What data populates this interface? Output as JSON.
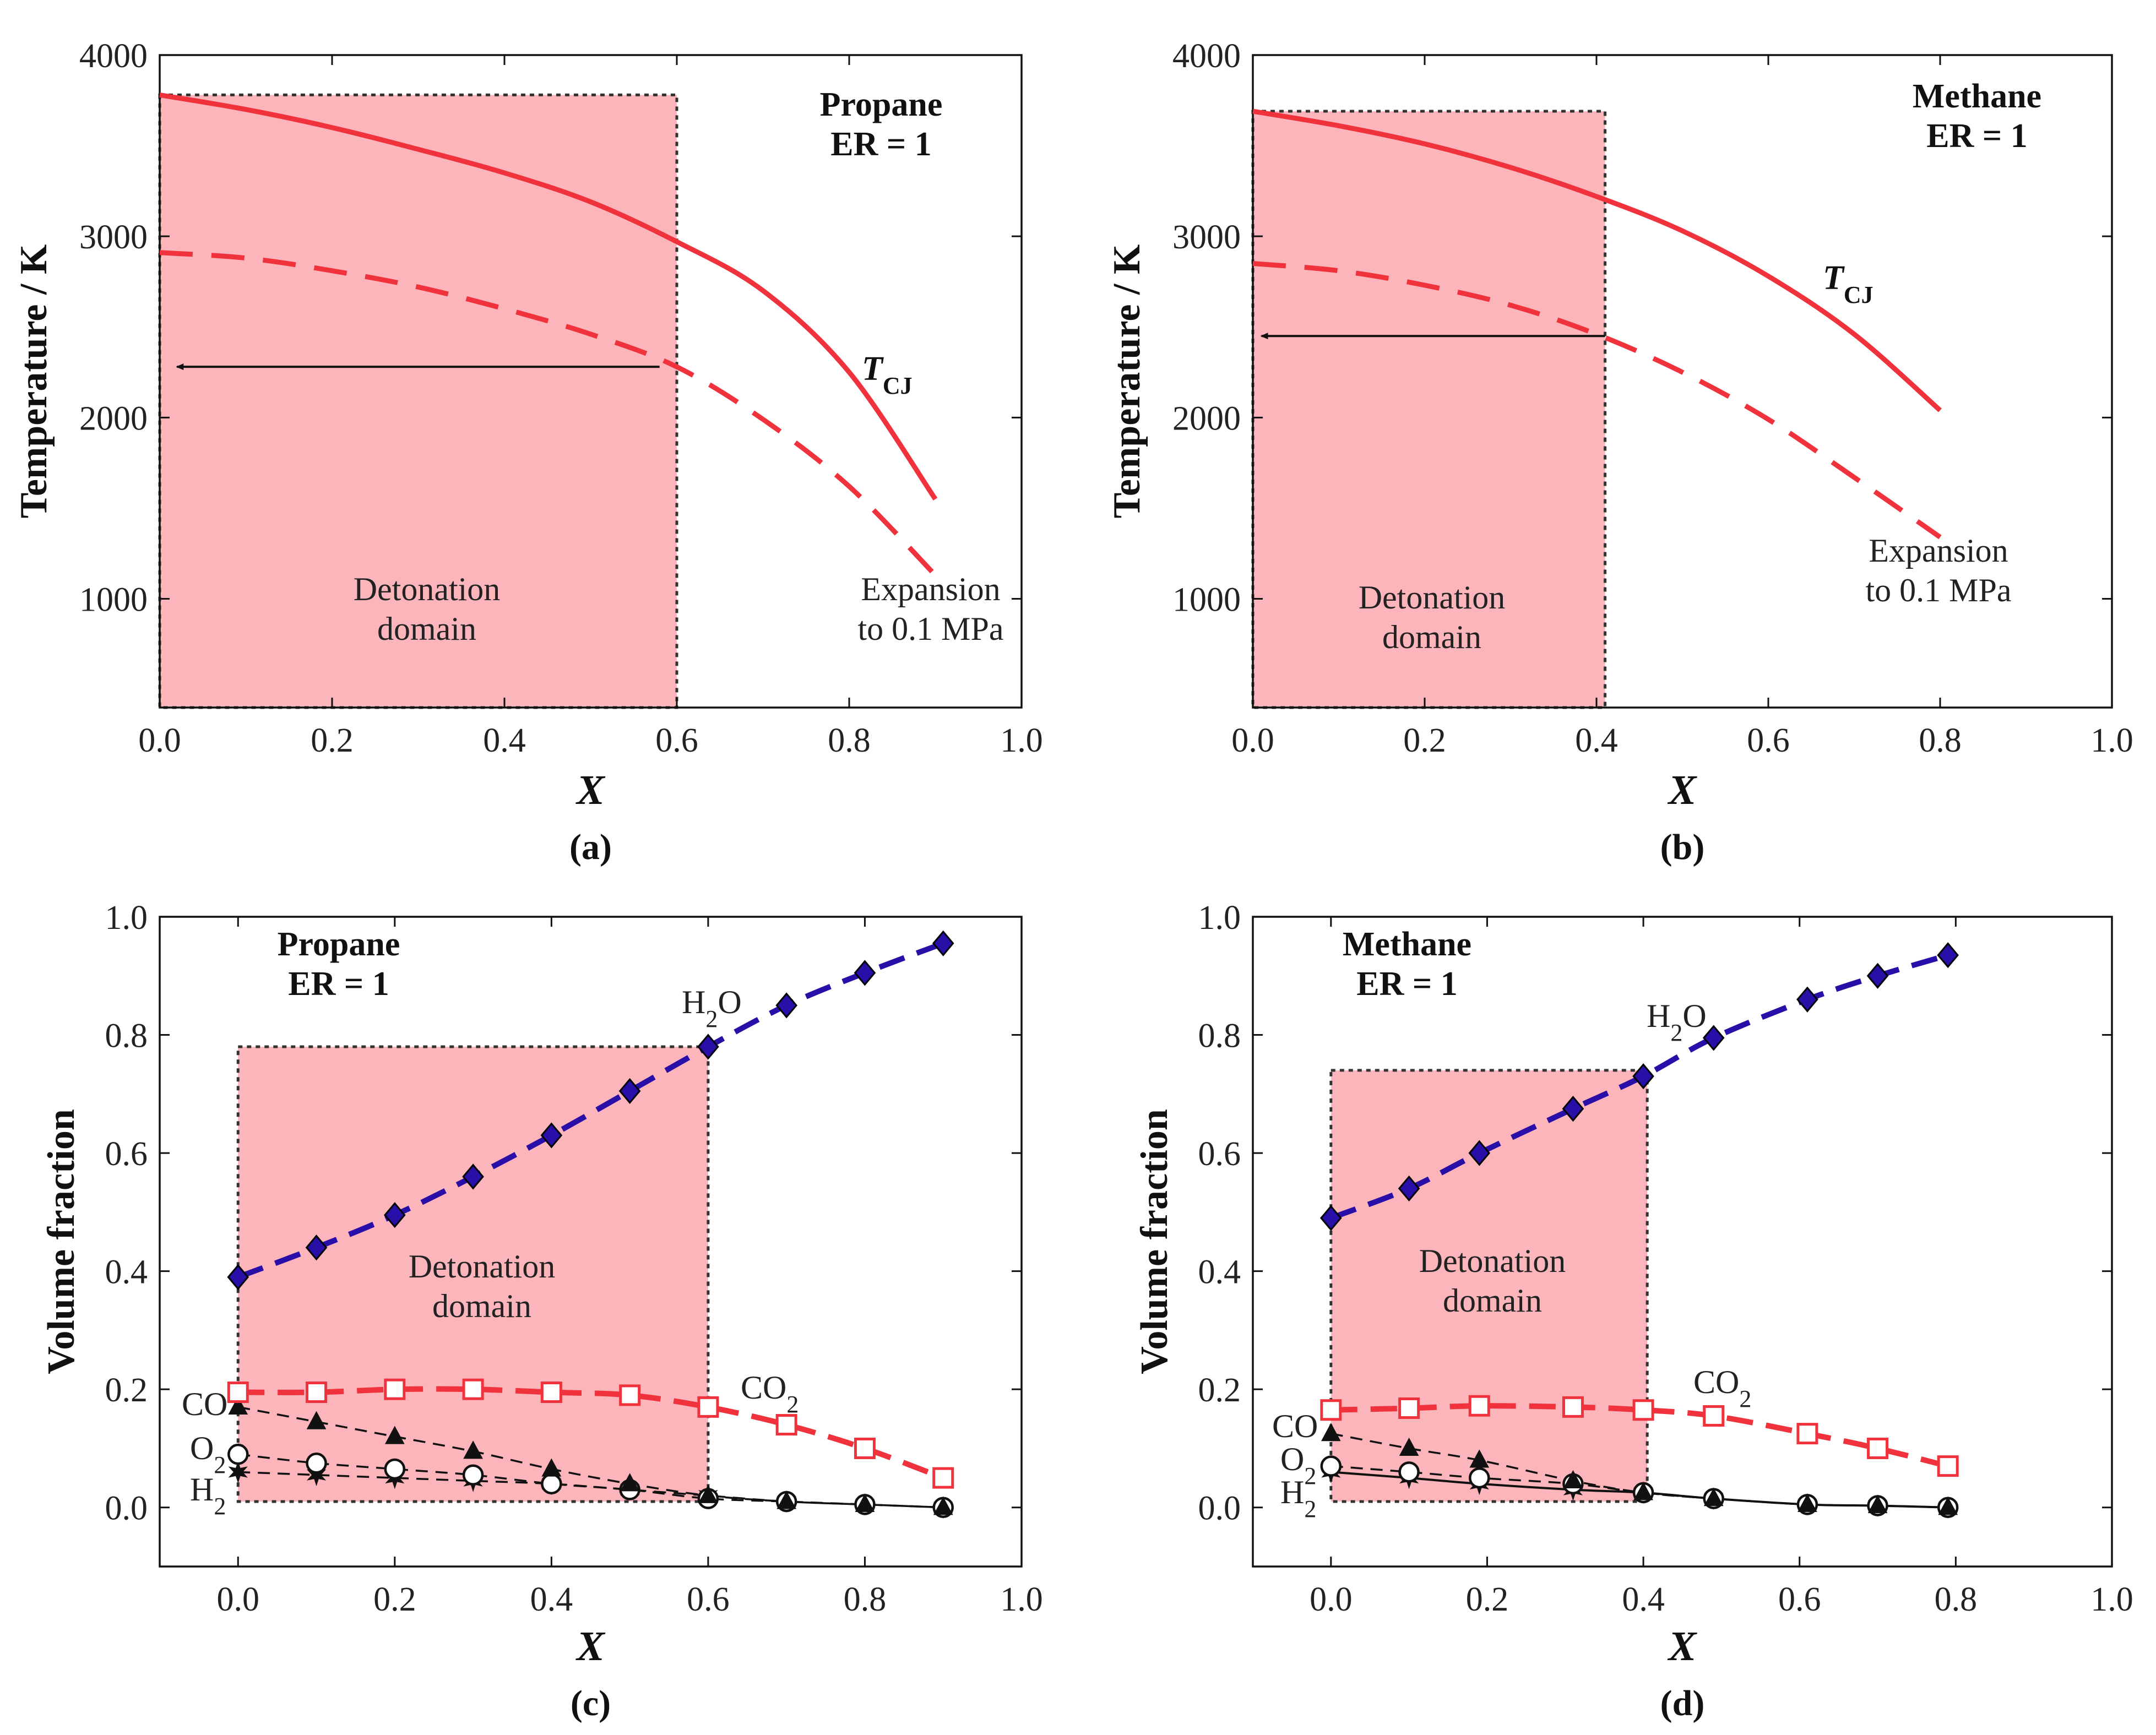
{
  "chart_data": [
    {
      "panel": "a",
      "type": "line",
      "panel_label": "(a)",
      "fuel_label": "Propane",
      "er_label": "ER = 1",
      "ylabel": "Temperature / K",
      "xlabel": "X",
      "xlim": [
        0.0,
        1.0
      ],
      "ylim": [
        400,
        4000
      ],
      "xticks": [
        0.0,
        0.2,
        0.4,
        0.6,
        0.8,
        1.0
      ],
      "xtick_labels": [
        "0.0",
        "0.2",
        "0.4",
        "0.6",
        "0.8",
        "1.0"
      ],
      "yticks": [
        1000,
        2000,
        3000,
        4000
      ],
      "ytick_labels": [
        "1000",
        "2000",
        "3000",
        "4000"
      ],
      "domain_label": [
        "Detonation",
        "domain"
      ],
      "domain_x": [
        0.0,
        0.6
      ],
      "domain_y": [
        400,
        3780
      ],
      "arrow": {
        "from_x": 0.58,
        "to_x": 0.02,
        "y": 2280
      },
      "series": [
        {
          "name": "TCJ",
          "label_main": "T",
          "label_sub": "CJ",
          "style": "solid",
          "color": "#f0323c",
          "x": [
            0.0,
            0.1,
            0.2,
            0.3,
            0.4,
            0.5,
            0.6,
            0.7,
            0.8,
            0.9
          ],
          "y": [
            3780,
            3700,
            3600,
            3480,
            3350,
            3190,
            2970,
            2700,
            2250,
            1550
          ]
        },
        {
          "name": "Expansion to 0.1 MPa",
          "label": [
            "Expansion",
            "to 0.1 MPa"
          ],
          "style": "dashed",
          "color": "#f0323c",
          "x": [
            0.0,
            0.1,
            0.2,
            0.3,
            0.4,
            0.5,
            0.6,
            0.7,
            0.8,
            0.9
          ],
          "y": [
            2910,
            2880,
            2810,
            2720,
            2600,
            2460,
            2280,
            1990,
            1620,
            1130
          ]
        }
      ]
    },
    {
      "panel": "b",
      "type": "line",
      "panel_label": "(b)",
      "fuel_label": "Methane",
      "er_label": "ER = 1",
      "ylabel": "Temperature / K",
      "xlabel": "X",
      "xlim": [
        0.0,
        1.0
      ],
      "ylim": [
        400,
        4000
      ],
      "xticks": [
        0.0,
        0.2,
        0.4,
        0.6,
        0.8,
        1.0
      ],
      "xtick_labels": [
        "0.0",
        "0.2",
        "0.4",
        "0.6",
        "0.8",
        "1.0"
      ],
      "yticks": [
        1000,
        2000,
        3000,
        4000
      ],
      "ytick_labels": [
        "1000",
        "2000",
        "3000",
        "4000"
      ],
      "domain_label": [
        "Detonation",
        "domain"
      ],
      "domain_x": [
        0.0,
        0.41
      ],
      "domain_y": [
        400,
        3690
      ],
      "arrow": {
        "from_x": 0.41,
        "to_x": 0.01,
        "y": 2450
      },
      "series": [
        {
          "name": "TCJ",
          "label_main": "T",
          "label_sub": "CJ",
          "style": "solid",
          "color": "#f0323c",
          "x": [
            0.0,
            0.1,
            0.2,
            0.3,
            0.4,
            0.5,
            0.6,
            0.7,
            0.8
          ],
          "y": [
            3690,
            3610,
            3510,
            3380,
            3220,
            3030,
            2780,
            2460,
            2040
          ]
        },
        {
          "name": "Expansion to 0.1 MPa",
          "label": [
            "Expansion",
            "to 0.1 MPa"
          ],
          "style": "dashed",
          "color": "#f0323c",
          "x": [
            0.0,
            0.1,
            0.2,
            0.3,
            0.4,
            0.5,
            0.6,
            0.7,
            0.8
          ],
          "y": [
            2850,
            2810,
            2730,
            2620,
            2460,
            2250,
            1990,
            1670,
            1340
          ]
        }
      ]
    },
    {
      "panel": "c",
      "type": "line",
      "panel_label": "(c)",
      "fuel_label": "Propane",
      "er_label": "ER = 1",
      "ylabel": "Volume fraction",
      "xlabel": "X",
      "xlim": [
        -0.1,
        1.0
      ],
      "ylim": [
        -0.1,
        1.0
      ],
      "xticks": [
        0.0,
        0.2,
        0.4,
        0.6,
        0.8,
        1.0
      ],
      "xtick_labels": [
        "0.0",
        "0.2",
        "0.4",
        "0.6",
        "0.8",
        "1.0"
      ],
      "yticks": [
        0.0,
        0.2,
        0.4,
        0.6,
        0.8,
        1.0
      ],
      "ytick_labels": [
        "0.0",
        "0.2",
        "0.4",
        "0.6",
        "0.8",
        "1.0"
      ],
      "domain_label": [
        "Detonation",
        "domain"
      ],
      "domain_x": [
        0.0,
        0.6
      ],
      "domain_y": [
        0.01,
        0.78
      ],
      "series": [
        {
          "name": "H2O",
          "label_main": "H",
          "label_sub": "2",
          "label_tail": "O",
          "marker": "diamond",
          "color": "#2a0ea8",
          "line": "dashed-thick",
          "x": [
            0.0,
            0.1,
            0.2,
            0.3,
            0.4,
            0.5,
            0.6,
            0.7,
            0.8,
            0.9
          ],
          "y": [
            0.39,
            0.44,
            0.495,
            0.56,
            0.63,
            0.705,
            0.78,
            0.85,
            0.905,
            0.955
          ]
        },
        {
          "name": "CO2",
          "label_main": "CO",
          "label_sub": "2",
          "label_tail": "",
          "marker": "square-open",
          "color": "#f0323c",
          "line": "dashed-thick",
          "x": [
            0.0,
            0.1,
            0.2,
            0.3,
            0.4,
            0.5,
            0.6,
            0.7,
            0.8,
            0.9
          ],
          "y": [
            0.195,
            0.195,
            0.2,
            0.2,
            0.195,
            0.19,
            0.17,
            0.14,
            0.1,
            0.05
          ]
        },
        {
          "name": "CO",
          "label_main": "CO",
          "label_sub": "",
          "label_tail": "",
          "marker": "triangle",
          "color": "#111111",
          "line": "dashed-thin",
          "x": [
            0.0,
            0.1,
            0.2,
            0.3,
            0.4,
            0.5,
            0.6,
            0.7,
            0.8,
            0.9
          ],
          "y": [
            0.17,
            0.145,
            0.12,
            0.095,
            0.065,
            0.04,
            0.02,
            0.01,
            0.005,
            0.0
          ]
        },
        {
          "name": "O2",
          "label_main": "O",
          "label_sub": "2",
          "label_tail": "",
          "marker": "circle-open",
          "color": "#111111",
          "line": "dashed-thin",
          "x": [
            0.0,
            0.1,
            0.2,
            0.3,
            0.4,
            0.5,
            0.6,
            0.7,
            0.8,
            0.9
          ],
          "y": [
            0.09,
            0.075,
            0.065,
            0.055,
            0.04,
            0.03,
            0.015,
            0.01,
            0.005,
            0.0
          ]
        },
        {
          "name": "H2",
          "label_main": "H",
          "label_sub": "2",
          "label_tail": "",
          "marker": "star",
          "color": "#111111",
          "line": "dashed-thin",
          "x": [
            0.0,
            0.1,
            0.2,
            0.3,
            0.4,
            0.5,
            0.6,
            0.7,
            0.8,
            0.9
          ],
          "y": [
            0.06,
            0.055,
            0.05,
            0.045,
            0.04,
            0.03,
            0.02,
            0.01,
            0.005,
            0.0
          ]
        }
      ]
    },
    {
      "panel": "d",
      "type": "line",
      "panel_label": "(d)",
      "fuel_label": "Methane",
      "er_label": "ER = 1",
      "ylabel": "Volume fraction",
      "xlabel": "X",
      "xlim": [
        -0.1,
        1.0
      ],
      "ylim": [
        -0.1,
        1.0
      ],
      "xticks": [
        0.0,
        0.2,
        0.4,
        0.6,
        0.8,
        1.0
      ],
      "xtick_labels": [
        "0.0",
        "0.2",
        "0.4",
        "0.6",
        "0.8",
        "1.0"
      ],
      "yticks": [
        0.0,
        0.2,
        0.4,
        0.6,
        0.8,
        1.0
      ],
      "ytick_labels": [
        "0.0",
        "0.2",
        "0.4",
        "0.6",
        "0.8",
        "1.0"
      ],
      "domain_label": [
        "Detonation",
        "domain"
      ],
      "domain_x": [
        0.0,
        0.405
      ],
      "domain_y": [
        0.01,
        0.74
      ],
      "series": [
        {
          "name": "H2O",
          "label_main": "H",
          "label_sub": "2",
          "label_tail": "O",
          "marker": "diamond",
          "color": "#2a0ea8",
          "line": "dashed-thick",
          "x": [
            0.0,
            0.1,
            0.19,
            0.31,
            0.4,
            0.49,
            0.61,
            0.7,
            0.79
          ],
          "y": [
            0.49,
            0.54,
            0.6,
            0.675,
            0.73,
            0.795,
            0.86,
            0.9,
            0.935
          ]
        },
        {
          "name": "CO2",
          "label_main": "CO",
          "label_sub": "2",
          "label_tail": "",
          "marker": "square-open",
          "color": "#f0323c",
          "line": "dashed-thick",
          "x": [
            0.0,
            0.1,
            0.19,
            0.31,
            0.4,
            0.49,
            0.61,
            0.7,
            0.79
          ],
          "y": [
            0.165,
            0.168,
            0.172,
            0.17,
            0.165,
            0.155,
            0.125,
            0.1,
            0.07
          ]
        },
        {
          "name": "CO",
          "label_main": "CO",
          "label_sub": "",
          "label_tail": "",
          "marker": "triangle",
          "color": "#111111",
          "line": "dashed-thin",
          "x": [
            0.0,
            0.1,
            0.19,
            0.31,
            0.4,
            0.49,
            0.61,
            0.7,
            0.79
          ],
          "y": [
            0.125,
            0.1,
            0.08,
            0.045,
            0.025,
            0.015,
            0.005,
            0.003,
            0.0
          ]
        },
        {
          "name": "O2",
          "label_main": "O",
          "label_sub": "2",
          "label_tail": "",
          "marker": "circle-open",
          "color": "#111111",
          "line": "dashed-thin",
          "x": [
            0.0,
            0.1,
            0.19,
            0.31,
            0.4,
            0.49,
            0.61,
            0.7,
            0.79
          ],
          "y": [
            0.07,
            0.06,
            0.05,
            0.04,
            0.025,
            0.015,
            0.005,
            0.003,
            0.0
          ]
        },
        {
          "name": "H2",
          "label_main": "H",
          "label_sub": "2",
          "label_tail": "",
          "marker": "star",
          "color": "#111111",
          "line": "solid-thin",
          "x": [
            0.0,
            0.1,
            0.19,
            0.31,
            0.4,
            0.49,
            0.61,
            0.7,
            0.79
          ],
          "y": [
            0.06,
            0.05,
            0.04,
            0.03,
            0.025,
            0.015,
            0.005,
            0.003,
            0.0
          ]
        }
      ]
    }
  ]
}
